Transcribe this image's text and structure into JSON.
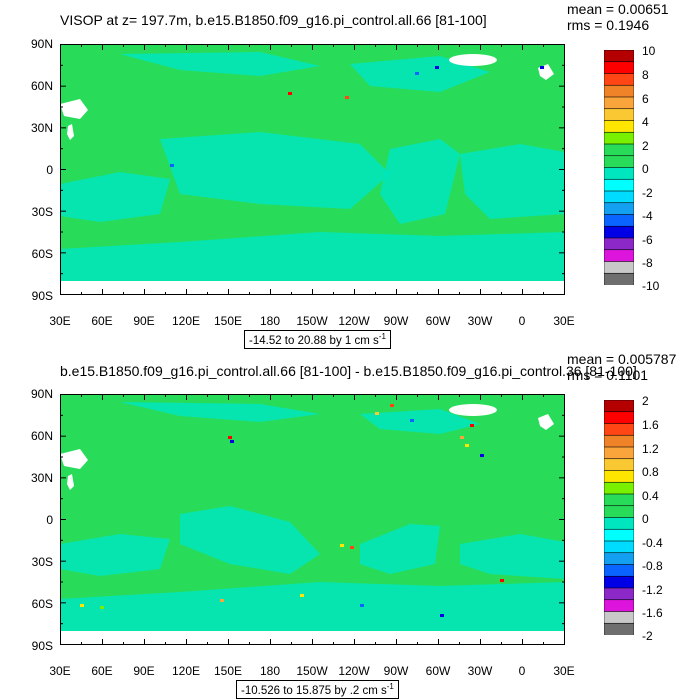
{
  "colors": {
    "land": "#ffffff",
    "bands": [
      "#6e6e6e",
      "#c8c8c8",
      "#dc14dc",
      "#8c28c8",
      "#0000e6",
      "#0a64ff",
      "#14a0f0",
      "#00dcff",
      "#00ffff",
      "#00e6be",
      "#28dc5a",
      "#78f000",
      "#ffe600",
      "#fac832",
      "#faa53c",
      "#f08228",
      "#ff4614",
      "#ff0000",
      "#b40000"
    ]
  },
  "chart_data": [
    {
      "type": "heatmap",
      "title": "VISOP at z= 197.7m, b.e15.B1850.f09_g16.pi_control.all.66 [81-100]",
      "stats": {
        "mean": "mean = 0.00651",
        "rms": "rms = 0.1946"
      },
      "x_ticks": [
        "30E",
        "60E",
        "90E",
        "120E",
        "150E",
        "180",
        "150W",
        "120W",
        "90W",
        "60W",
        "30W",
        "0",
        "30E"
      ],
      "y_ticks": [
        "90N",
        "60N",
        "30N",
        "0",
        "30S",
        "60S",
        "90S"
      ],
      "colorbar_labels": [
        "10",
        "8",
        "6",
        "4",
        "2",
        "0",
        "-2",
        "-4",
        "-6",
        "-8",
        "-10"
      ],
      "colorbar_levels": [
        -10,
        -9,
        -8,
        -7,
        -6,
        -5,
        -4,
        -3,
        -2,
        -1,
        0,
        1,
        2,
        3,
        4,
        5,
        6,
        7,
        8,
        9,
        10
      ],
      "range_text": "-14.52 to 20.88 by 1 cm s",
      "range_unit_exp": "-1",
      "dominant_band": "0 to 1",
      "secondary_band": "-1 to 0"
    },
    {
      "type": "heatmap",
      "title": "b.e15.B1850.f09_g16.pi_control.all.66 [81-100] - b.e15.B1850.f09_g16.pi_control.36 [81-100]",
      "stats": {
        "mean": "mean = 0.005787",
        "rms": "rms = 0.1101"
      },
      "x_ticks": [
        "30E",
        "60E",
        "90E",
        "120E",
        "150E",
        "180",
        "150W",
        "120W",
        "90W",
        "60W",
        "30W",
        "0",
        "30E"
      ],
      "y_ticks": [
        "90N",
        "60N",
        "30N",
        "0",
        "30S",
        "60S",
        "90S"
      ],
      "colorbar_labels": [
        "2",
        "1.6",
        "1.2",
        "0.8",
        "0.4",
        "0",
        "-0.4",
        "-0.8",
        "-1.2",
        "-1.6",
        "-2"
      ],
      "colorbar_levels": [
        -2,
        -1.8,
        -1.6,
        -1.4,
        -1.2,
        -1,
        -0.8,
        -0.6,
        -0.4,
        -0.2,
        0,
        0.2,
        0.4,
        0.6,
        0.8,
        1,
        1.2,
        1.4,
        1.6,
        1.8,
        2
      ],
      "range_text": "-10.526 to 15.875 by .2 cm s",
      "range_unit_exp": "-1",
      "dominant_band": "0 to 0.2",
      "secondary_band": "-0.2 to 0"
    }
  ]
}
